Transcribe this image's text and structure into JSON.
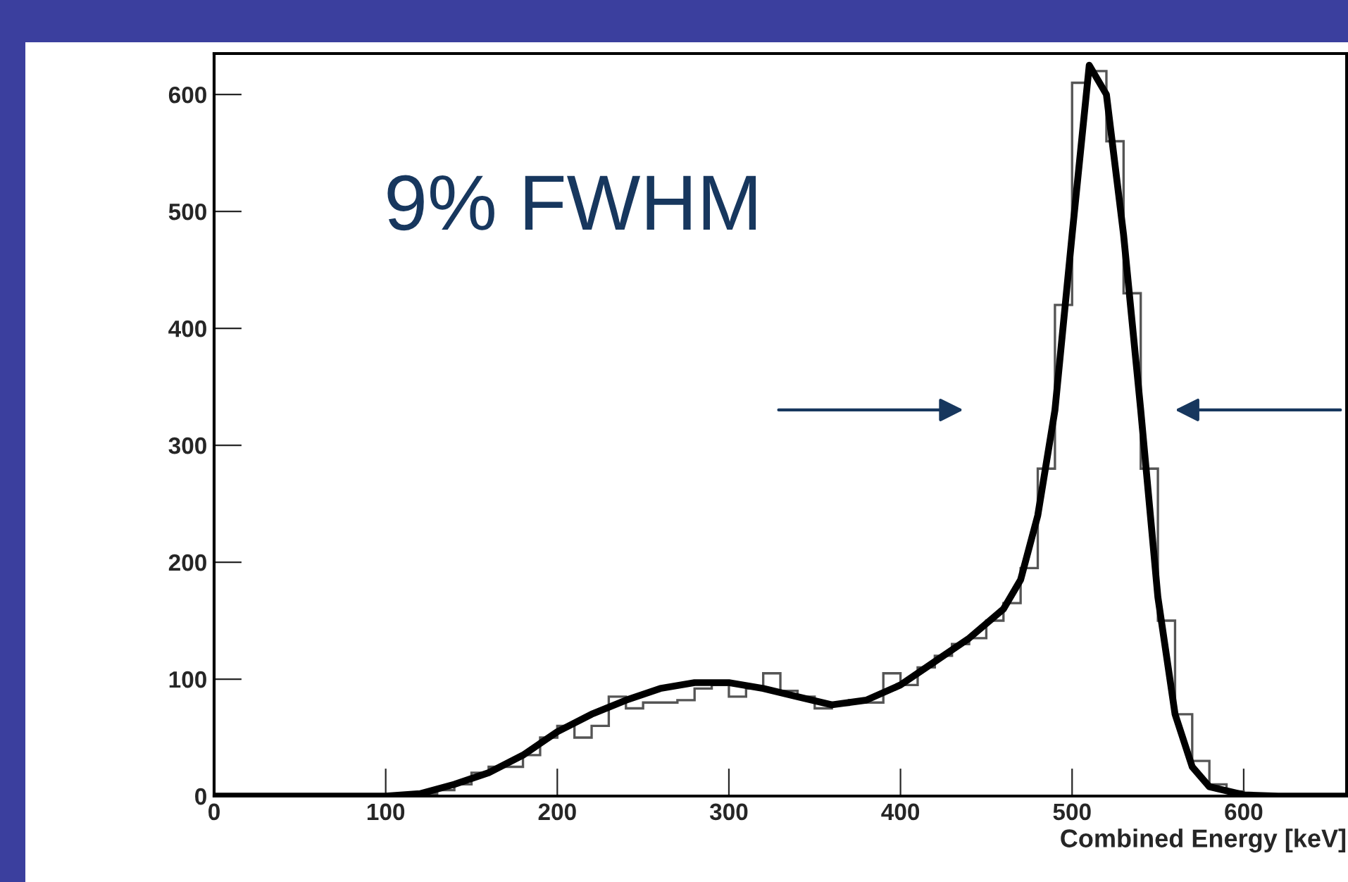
{
  "chart_data": {
    "type": "histogram",
    "xlabel": "Combined Energy [keV]",
    "annotations": [
      "9% FWHM"
    ],
    "bins": [
      0,
      10,
      20,
      30,
      40,
      50,
      60,
      70,
      80,
      90,
      100,
      110,
      120,
      130,
      140,
      150,
      160,
      170,
      180,
      190,
      200,
      210,
      220,
      230,
      240,
      250,
      260,
      270,
      280,
      290,
      300,
      310,
      320,
      330,
      340,
      350,
      360,
      370,
      380,
      390,
      400,
      410,
      420,
      430,
      440,
      450,
      460,
      470,
      480,
      490,
      500,
      510,
      520,
      530,
      540,
      550,
      560,
      570,
      580,
      590,
      600,
      610,
      620,
      630,
      640,
      650,
      660
    ],
    "values": [
      0,
      0,
      0,
      0,
      0,
      0,
      0,
      0,
      0,
      0,
      1,
      1,
      2,
      5,
      10,
      20,
      25,
      25,
      35,
      50,
      60,
      50,
      60,
      85,
      75,
      80,
      80,
      82,
      92,
      95,
      85,
      92,
      105,
      90,
      85,
      75,
      78,
      82,
      80,
      105,
      95,
      110,
      120,
      130,
      135,
      150,
      165,
      195,
      280,
      420,
      610,
      620,
      560,
      430,
      280,
      150,
      70,
      30,
      10,
      4,
      1,
      0,
      0,
      0,
      0,
      0
    ],
    "color": "#555555",
    "series": [
      {
        "type": "line",
        "color": "#000000",
        "x": [
          0,
          100,
          120,
          140,
          160,
          180,
          200,
          220,
          240,
          260,
          280,
          300,
          320,
          340,
          360,
          380,
          400,
          420,
          440,
          460,
          470,
          480,
          490,
          500,
          510,
          520,
          530,
          540,
          550,
          560,
          570,
          580,
          600,
          620,
          660
        ],
        "values": [
          0,
          0,
          2,
          10,
          20,
          35,
          55,
          70,
          82,
          92,
          97,
          97,
          92,
          85,
          78,
          82,
          95,
          115,
          135,
          160,
          185,
          240,
          330,
          480,
          625,
          600,
          480,
          330,
          170,
          70,
          25,
          8,
          1,
          0,
          0
        ]
      }
    ],
    "xlim": [
      0,
      660
    ],
    "ylim": [
      0,
      635
    ],
    "xticks": [
      0,
      100,
      200,
      300,
      400,
      500,
      600
    ],
    "yticks": [
      0,
      100,
      200,
      300,
      400,
      500,
      600
    ],
    "grid": false,
    "legend": false
  }
}
